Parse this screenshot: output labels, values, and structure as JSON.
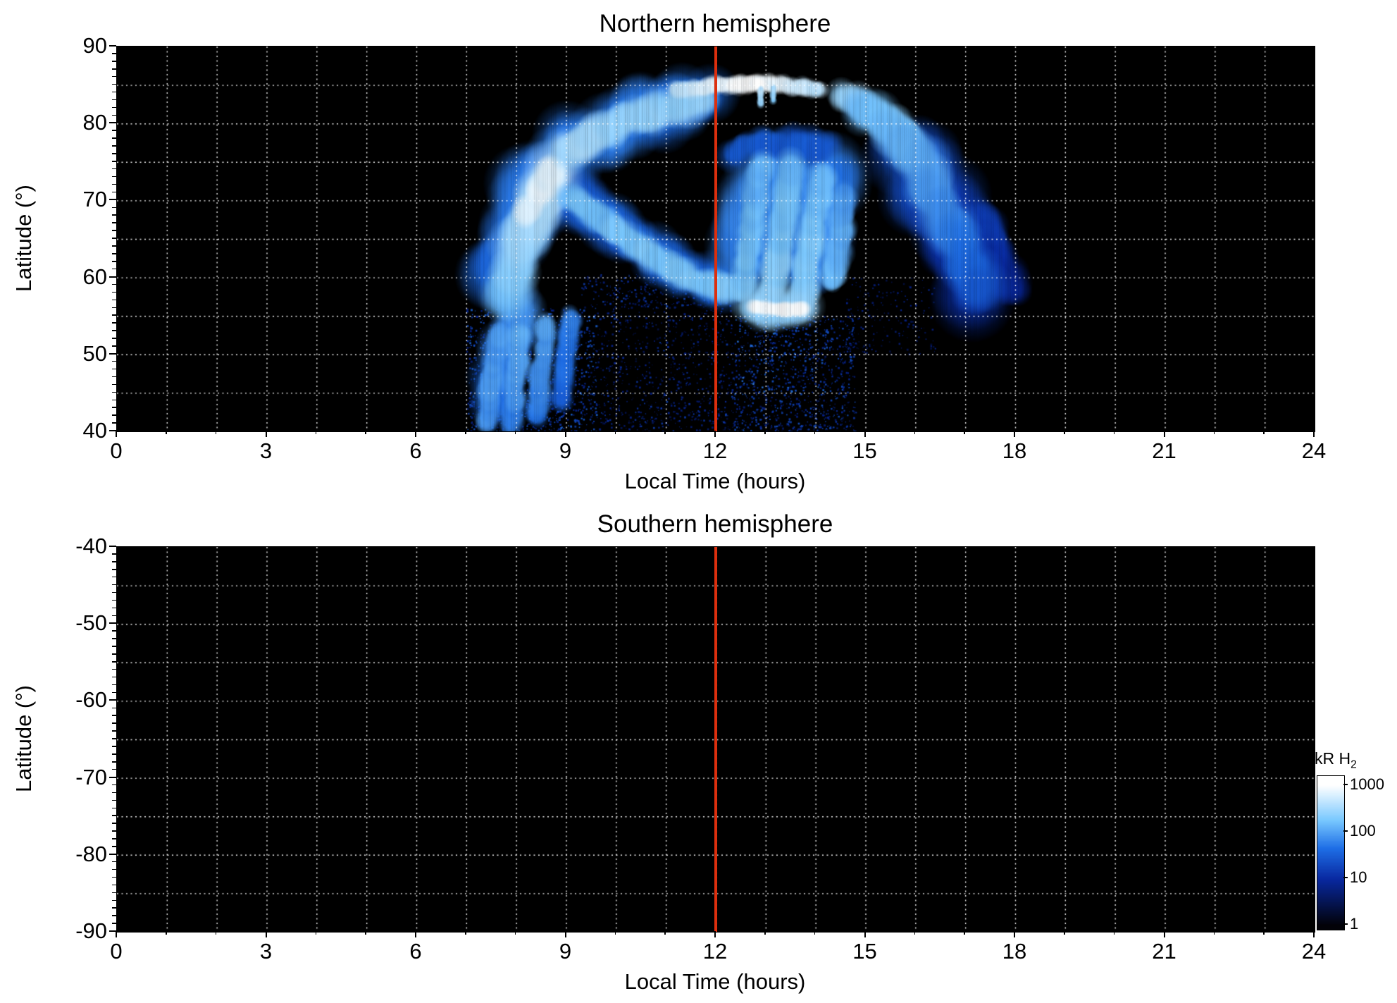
{
  "chart_data": {
    "type": "heatmap",
    "description": "Auroral H2 emission brightness vs local time and latitude, two hemispheres, log blue colormap",
    "cmap": [
      [
        0,
        [
          2,
          2,
          8
        ]
      ],
      [
        0.33,
        [
          8,
          40,
          160
        ]
      ],
      [
        0.55,
        [
          30,
          110,
          230
        ]
      ],
      [
        0.75,
        [
          120,
          200,
          255
        ]
      ],
      [
        1,
        [
          255,
          255,
          255
        ]
      ]
    ],
    "panels": [
      {
        "id": "north",
        "title": "Northern hemisphere",
        "xlabel": "Local Time (hours)",
        "ylabel": "Latitude (°)",
        "xlim": [
          0,
          24
        ],
        "ylim": [
          40,
          90
        ],
        "xticks": [
          0,
          3,
          6,
          9,
          12,
          15,
          18,
          21,
          24
        ],
        "yticks": [
          90,
          80,
          70,
          60,
          50,
          40
        ],
        "grid": {
          "x_step": 1,
          "y_step": 5,
          "style": "dotted",
          "color": "#ffffff"
        },
        "noon_line": {
          "x": 12,
          "color": "#dc2f0e"
        },
        "bg": "#000000",
        "stripes": {
          "h0": 7.0,
          "h1": 18.3,
          "alpha": 0.16
        },
        "speckle": [
          {
            "h": [
              7.0,
              9.6
            ],
            "lat": [
              40,
              56
            ],
            "n": 1000,
            "v": [
              4,
              45
            ],
            "s": [
              1,
              3
            ]
          },
          {
            "h": [
              9.6,
              12.3
            ],
            "lat": [
              40,
              57
            ],
            "n": 650,
            "v": [
              2,
              16
            ],
            "s": [
              1,
              3
            ]
          },
          {
            "h": [
              12.3,
              14.8
            ],
            "lat": [
              40,
              55
            ],
            "n": 850,
            "v": [
              3,
              30
            ],
            "s": [
              1,
              3
            ]
          },
          {
            "h": [
              9.3,
              12.1
            ],
            "lat": [
              56,
              60.5
            ],
            "n": 220,
            "v": [
              3,
              22
            ],
            "s": [
              1,
              3
            ]
          },
          {
            "h": [
              14.6,
              16.4
            ],
            "lat": [
              50,
              60
            ],
            "n": 180,
            "v": [
              2,
              10
            ],
            "s": [
              1,
              3
            ]
          },
          {
            "h": [
              7.0,
              14.5
            ],
            "lat": [
              40,
              44
            ],
            "n": 260,
            "v": [
              3,
              20
            ],
            "s": [
              1,
              3
            ]
          },
          {
            "h": [
              12.4,
              14.2
            ],
            "lat": [
              45,
              55
            ],
            "n": 120,
            "v": [
              15,
              70
            ],
            "s": [
              1,
              3
            ]
          }
        ],
        "features": [
          {
            "p": [
              [
                7.6,
                60
              ],
              [
                7.9,
                66
              ],
              [
                8.3,
                71
              ],
              [
                8.8,
                75
              ]
            ],
            "r": 4.2,
            "v": [
              35,
              60
            ],
            "j": 0.4
          },
          {
            "p": [
              [
                7.6,
                44
              ],
              [
                7.8,
                50
              ],
              [
                8.1,
                56
              ]
            ],
            "r": 2.8,
            "v": [
              40,
              70
            ],
            "j": 0.4
          },
          {
            "p": [
              [
                9.0,
                76
              ],
              [
                9.6,
                78.5
              ],
              [
                10.3,
                80.5
              ],
              [
                11.0,
                82
              ],
              [
                11.8,
                83.2
              ]
            ],
            "r": 3.5,
            "v": [
              55,
              40
            ],
            "j": 0.5
          },
          {
            "p": [
              [
                15.8,
                78
              ],
              [
                16.2,
                73
              ],
              [
                16.6,
                68
              ],
              [
                17.0,
                63
              ],
              [
                17.3,
                59
              ]
            ],
            "r": 4.5,
            "v": [
              22,
              10
            ],
            "j": 0.45
          },
          {
            "p": [
              [
                17.2,
                68
              ],
              [
                17.6,
                63
              ],
              [
                17.9,
                58
              ]
            ],
            "r": 2.4,
            "v": [
              16,
              7
            ],
            "j": 0.45
          },
          {
            "p": [
              [
                9.1,
                70.5
              ],
              [
                9.7,
                67.5
              ],
              [
                10.3,
                64.5
              ],
              [
                10.9,
                62
              ],
              [
                11.5,
                60
              ],
              [
                12.1,
                58.6
              ]
            ],
            "r": 3.0,
            "v": [
              30,
              40
            ],
            "j": 0.4
          },
          {
            "p": [
              [
                12.6,
                62
              ],
              [
                12.8,
                67
              ],
              [
                13.0,
                71
              ],
              [
                13.3,
                74.5
              ]
            ],
            "r": 4.5,
            "v": [
              55,
              65
            ],
            "j": 0.35
          },
          {
            "p": [
              [
                13.8,
                61
              ],
              [
                14.0,
                66
              ],
              [
                14.2,
                71
              ],
              [
                14.3,
                74
              ]
            ],
            "r": 4.2,
            "v": [
              65,
              50
            ],
            "j": 0.35
          },
          {
            "p": [
              [
                12.4,
                76.5
              ],
              [
                13.0,
                77.5
              ],
              [
                13.6,
                77.5
              ],
              [
                14.2,
                76.5
              ]
            ],
            "r": 1.8,
            "v": [
              32,
              28
            ],
            "j": 0.5
          },
          {
            "p": [
              [
                7.4,
                41
              ],
              [
                7.5,
                47
              ],
              [
                7.7,
                53
              ]
            ],
            "r": 1.4,
            "v": [
              75,
              95
            ],
            "j": 0.3
          },
          {
            "p": [
              [
                7.9,
                41
              ],
              [
                8.0,
                47
              ],
              [
                8.1,
                53
              ]
            ],
            "r": 1.4,
            "v": [
              60,
              110
            ],
            "j": 0.3
          },
          {
            "p": [
              [
                8.4,
                42
              ],
              [
                8.5,
                48
              ],
              [
                8.6,
                54
              ]
            ],
            "r": 1.4,
            "v": [
              50,
              95
            ],
            "j": 0.3
          },
          {
            "p": [
              [
                8.9,
                44
              ],
              [
                9.0,
                50
              ],
              [
                9.1,
                55
              ]
            ],
            "r": 1.3,
            "v": [
              30,
              60
            ],
            "j": 0.3
          },
          {
            "p": [
              [
                7.8,
                57
              ],
              [
                8.0,
                62
              ],
              [
                8.2,
                66
              ],
              [
                8.4,
                70
              ],
              [
                8.7,
                73.5
              ]
            ],
            "r": 3.0,
            "v": [
              130,
              430
            ],
            "j": 0.3
          },
          {
            "p": [
              [
                8.2,
                68
              ],
              [
                8.5,
                71.5
              ],
              [
                8.8,
                74.5
              ]
            ],
            "r": 1.7,
            "v": [
              560,
              760
            ],
            "j": 0.25
          },
          {
            "p": [
              [
                9.0,
                76
              ],
              [
                9.6,
                78.5
              ],
              [
                10.3,
                80.5
              ],
              [
                11.0,
                82
              ],
              [
                11.8,
                83.2
              ]
            ],
            "r": 2.2,
            "v": [
              330,
              230
            ],
            "j": 0.45
          },
          {
            "p": [
              [
                11.2,
                84.3
              ],
              [
                12.0,
                84.9
              ],
              [
                12.7,
                85.2
              ]
            ],
            "r": 1.1,
            "v": [
              420,
              900
            ],
            "j": 0.3
          },
          {
            "p": [
              [
                12.7,
                85.2
              ],
              [
                13.4,
                85.0
              ],
              [
                14.1,
                84.4
              ]
            ],
            "r": 1.1,
            "v": [
              900,
              420
            ],
            "j": 0.3
          },
          {
            "p": [
              [
                12.3,
                85.0
              ],
              [
                12.9,
                85.2
              ]
            ],
            "r": 0.7,
            "v": [
              1000,
              1000
            ],
            "j": 0.15
          },
          {
            "p": [
              [
                12.9,
                82.5
              ],
              [
                12.9,
                84.5
              ]
            ],
            "r": 0.5,
            "v": [
              250,
              420
            ],
            "j": 0.2
          },
          {
            "p": [
              [
                13.15,
                83.0
              ],
              [
                13.15,
                84.8
              ]
            ],
            "r": 0.45,
            "v": [
              200,
              360
            ],
            "j": 0.2
          },
          {
            "p": [
              [
                14.6,
                83.5
              ],
              [
                15.1,
                82
              ],
              [
                15.6,
                80
              ],
              [
                16.0,
                77.5
              ]
            ],
            "r": 1.9,
            "v": [
              280,
              170
            ],
            "j": 0.35
          },
          {
            "p": [
              [
                15.0,
                82
              ],
              [
                15.5,
                79.5
              ],
              [
                16.0,
                76
              ],
              [
                16.4,
                71
              ],
              [
                16.8,
                66
              ],
              [
                17.1,
                61
              ],
              [
                17.3,
                58
              ]
            ],
            "r": 2.8,
            "v": [
              150,
              24
            ],
            "j": 0.35
          },
          {
            "p": [
              [
                9.1,
                70.5
              ],
              [
                9.7,
                67.5
              ],
              [
                10.3,
                64.5
              ],
              [
                10.9,
                62
              ],
              [
                11.5,
                60
              ],
              [
                12.1,
                58.6
              ],
              [
                12.6,
                58.2
              ]
            ],
            "r": 1.8,
            "v": [
              150,
              195
            ],
            "j": 0.3
          },
          {
            "p": [
              [
                12.55,
                58.5
              ],
              [
                12.65,
                63
              ],
              [
                12.75,
                68
              ],
              [
                12.85,
                72
              ],
              [
                12.95,
                75
              ]
            ],
            "r": 1.7,
            "v": [
              175,
              120
            ],
            "j": 0.3
          },
          {
            "p": [
              [
                13.1,
                57.5
              ],
              [
                13.25,
                62
              ],
              [
                13.35,
                67
              ],
              [
                13.45,
                71
              ],
              [
                13.55,
                74.5
              ]
            ],
            "r": 1.8,
            "v": [
              235,
              140
            ],
            "j": 0.3
          },
          {
            "p": [
              [
                13.7,
                57
              ],
              [
                13.85,
                62
              ],
              [
                13.95,
                66
              ],
              [
                14.05,
                70
              ],
              [
                14.15,
                73.5
              ]
            ],
            "r": 1.8,
            "v": [
              225,
              130
            ],
            "j": 0.3
          },
          {
            "p": [
              [
                14.35,
                59
              ],
              [
                14.45,
                63
              ],
              [
                14.5,
                67
              ],
              [
                14.55,
                71
              ]
            ],
            "r": 1.6,
            "v": [
              150,
              90
            ],
            "j": 0.3
          },
          {
            "p": [
              [
                12.7,
                56.3
              ],
              [
                13.1,
                56.0
              ],
              [
                13.5,
                55.9
              ],
              [
                13.8,
                56.0
              ]
            ],
            "r": 2.6,
            "v": [
              230,
              260
            ],
            "j": 0.2
          },
          {
            "p": [
              [
                12.75,
                56.2
              ],
              [
                13.1,
                55.9
              ],
              [
                13.45,
                55.8
              ],
              [
                13.75,
                55.9
              ]
            ],
            "r": 1.0,
            "v": [
              950,
              1000
            ],
            "j": 0.1
          }
        ]
      },
      {
        "id": "south",
        "title": "Southern hemisphere",
        "xlabel": "Local Time (hours)",
        "ylabel": "Latitude (°)",
        "xlim": [
          0,
          24
        ],
        "ylim": [
          -90,
          -40
        ],
        "xticks": [
          0,
          3,
          6,
          9,
          12,
          15,
          18,
          21,
          24
        ],
        "yticks": [
          -40,
          -50,
          -60,
          -70,
          -80,
          -90
        ],
        "grid": {
          "x_step": 1,
          "y_step": 5,
          "style": "dotted",
          "color": "#ffffff"
        },
        "noon_line": {
          "x": 12,
          "color": "#dc2f0e"
        },
        "bg": "#000000",
        "stripes": null,
        "speckle": [],
        "features": []
      }
    ],
    "colorbar": {
      "label_main": "kR H",
      "label_sub": "2",
      "ticks": [
        1000,
        100,
        10,
        1
      ],
      "scale": "log"
    }
  }
}
